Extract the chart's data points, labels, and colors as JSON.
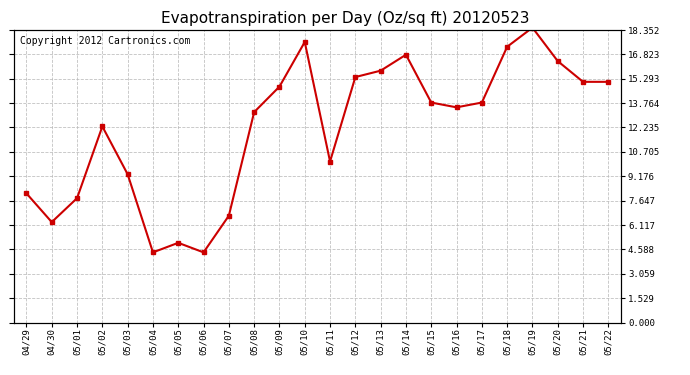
{
  "title": "Evapotranspiration per Day (Oz/sq ft) 20120523",
  "copyright": "Copyright 2012 Cartronics.com",
  "dates": [
    "04/29",
    "04/30",
    "05/01",
    "05/02",
    "05/03",
    "05/04",
    "05/05",
    "05/06",
    "05/07",
    "05/08",
    "05/09",
    "05/10",
    "05/11",
    "05/12",
    "05/13",
    "05/14",
    "05/15",
    "05/16",
    "05/17",
    "05/18",
    "05/19",
    "05/20",
    "05/21",
    "05/22"
  ],
  "values": [
    8.1,
    6.3,
    7.8,
    12.3,
    9.3,
    4.4,
    5.0,
    4.4,
    6.7,
    13.2,
    14.8,
    17.6,
    10.1,
    15.4,
    15.8,
    16.8,
    13.8,
    13.5,
    13.8,
    17.3,
    18.5,
    16.4,
    15.1,
    15.1
  ],
  "line_color": "#cc0000",
  "marker": "s",
  "marker_size": 3,
  "bg_color": "#ffffff",
  "grid_color": "#bbbbbb",
  "yticks": [
    0.0,
    1.529,
    3.059,
    4.588,
    6.117,
    7.647,
    9.176,
    10.705,
    12.235,
    13.764,
    15.293,
    16.823,
    18.352
  ],
  "ylim": [
    0.0,
    18.352
  ],
  "title_fontsize": 11,
  "copyright_fontsize": 7
}
